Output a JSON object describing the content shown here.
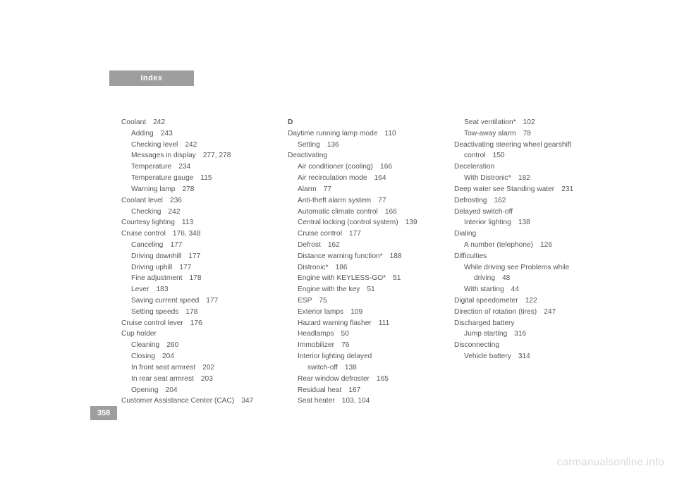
{
  "header": {
    "tab": "Index"
  },
  "pagenum": "358",
  "watermark": "carmanualsonline.info",
  "col1": [
    {
      "t": "Coolant",
      "p": "242",
      "i": 0
    },
    {
      "t": "Adding",
      "p": "243",
      "i": 1
    },
    {
      "t": "Checking level",
      "p": "242",
      "i": 1
    },
    {
      "t": "Messages in display",
      "p": "277, 278",
      "i": 1
    },
    {
      "t": "Temperature",
      "p": "234",
      "i": 1
    },
    {
      "t": "Temperature gauge",
      "p": "115",
      "i": 1
    },
    {
      "t": "Warning lamp",
      "p": "278",
      "i": 1
    },
    {
      "t": "Coolant level",
      "p": "236",
      "i": 0
    },
    {
      "t": "Checking",
      "p": "242",
      "i": 1
    },
    {
      "t": "Courtesy lighting",
      "p": "113",
      "i": 0
    },
    {
      "t": "Cruise control",
      "p": "176, 348",
      "i": 0
    },
    {
      "t": "Canceling",
      "p": "177",
      "i": 1
    },
    {
      "t": "Driving downhill",
      "p": "177",
      "i": 1
    },
    {
      "t": "Driving uphill",
      "p": "177",
      "i": 1
    },
    {
      "t": "Fine adjustment",
      "p": "178",
      "i": 1
    },
    {
      "t": "Lever",
      "p": "183",
      "i": 1
    },
    {
      "t": "Saving current speed",
      "p": "177",
      "i": 1
    },
    {
      "t": "Setting speeds",
      "p": "178",
      "i": 1
    },
    {
      "t": "Cruise control lever",
      "p": "176",
      "i": 0
    },
    {
      "t": "Cup holder",
      "p": "",
      "i": 0
    },
    {
      "t": "Cleaning",
      "p": "260",
      "i": 1
    },
    {
      "t": "Closing",
      "p": "204",
      "i": 1
    },
    {
      "t": "In front seat armrest",
      "p": "202",
      "i": 1
    },
    {
      "t": "In rear seat armrest",
      "p": "203",
      "i": 1
    },
    {
      "t": "Opening",
      "p": "204",
      "i": 1
    },
    {
      "t": "Customer Assistance Center (CAC)",
      "p": "347",
      "i": 0
    }
  ],
  "col2": [
    {
      "t": "D",
      "p": "",
      "i": 0,
      "b": true
    },
    {
      "t": "Daytime running lamp mode",
      "p": "110",
      "i": 0
    },
    {
      "t": "Setting",
      "p": "136",
      "i": 1
    },
    {
      "t": "Deactivating",
      "p": "",
      "i": 0
    },
    {
      "t": "Air conditioner (cooling)",
      "p": "166",
      "i": 1
    },
    {
      "t": "Air recirculation mode",
      "p": "164",
      "i": 1
    },
    {
      "t": "Alarm",
      "p": "77",
      "i": 1
    },
    {
      "t": "Anti-theft alarm system",
      "p": "77",
      "i": 1
    },
    {
      "t": "Automatic climate control",
      "p": "166",
      "i": 1
    },
    {
      "t": "Central locking (control system)",
      "p": "139",
      "i": 1
    },
    {
      "t": "Cruise control",
      "p": "177",
      "i": 1
    },
    {
      "t": "Defrost",
      "p": "162",
      "i": 1
    },
    {
      "t": "Distance warning function*",
      "p": "188",
      "i": 1
    },
    {
      "t": "Distronic*",
      "p": "186",
      "i": 1
    },
    {
      "t": "Engine with KEYLESS-GO*",
      "p": "51",
      "i": 1
    },
    {
      "t": "Engine with the key",
      "p": "51",
      "i": 1
    },
    {
      "t": "ESP",
      "p": "75",
      "i": 1
    },
    {
      "t": "Exterior lamps",
      "p": "109",
      "i": 1
    },
    {
      "t": "Hazard warning flasher",
      "p": "111",
      "i": 1
    },
    {
      "t": "Headlamps",
      "p": "50",
      "i": 1
    },
    {
      "t": "Immobilizer",
      "p": "76",
      "i": 1
    },
    {
      "t": "Interior lighting delayed",
      "p": "",
      "i": 1
    },
    {
      "t": "switch-off",
      "p": "138",
      "i": 2
    },
    {
      "t": "Rear window defroster",
      "p": "165",
      "i": 1
    },
    {
      "t": "Residual heat",
      "p": "167",
      "i": 1
    },
    {
      "t": "Seat heater",
      "p": "103, 104",
      "i": 1
    }
  ],
  "col3": [
    {
      "t": "Seat ventilation*",
      "p": "102",
      "i": 1
    },
    {
      "t": "Tow-away alarm",
      "p": "78",
      "i": 1
    },
    {
      "t": "Deactivating steering wheel gearshift",
      "p": "",
      "i": 0
    },
    {
      "t": "control",
      "p": "150",
      "i": 1
    },
    {
      "t": "Deceleration",
      "p": "",
      "i": 0
    },
    {
      "t": "With Distronic*",
      "p": "182",
      "i": 1
    },
    {
      "t": "Deep water see Standing water",
      "p": "231",
      "i": 0
    },
    {
      "t": "Defrosting",
      "p": "162",
      "i": 0
    },
    {
      "t": "Delayed switch-off",
      "p": "",
      "i": 0
    },
    {
      "t": "Interior lighting",
      "p": "138",
      "i": 1
    },
    {
      "t": "Dialing",
      "p": "",
      "i": 0
    },
    {
      "t": "A number (telephone)",
      "p": "126",
      "i": 1
    },
    {
      "t": "Difficulties",
      "p": "",
      "i": 0
    },
    {
      "t": "While driving see Problems while",
      "p": "",
      "i": 1
    },
    {
      "t": "driving",
      "p": "48",
      "i": 2
    },
    {
      "t": "With starting",
      "p": "44",
      "i": 1
    },
    {
      "t": "Digital speedometer",
      "p": "122",
      "i": 0
    },
    {
      "t": "Direction of rotation (tires)",
      "p": "247",
      "i": 0
    },
    {
      "t": "Discharged battery",
      "p": "",
      "i": 0
    },
    {
      "t": "Jump starting",
      "p": "316",
      "i": 1
    },
    {
      "t": "Disconnecting",
      "p": "",
      "i": 0
    },
    {
      "t": "Vehicle battery",
      "p": "314",
      "i": 1
    }
  ]
}
